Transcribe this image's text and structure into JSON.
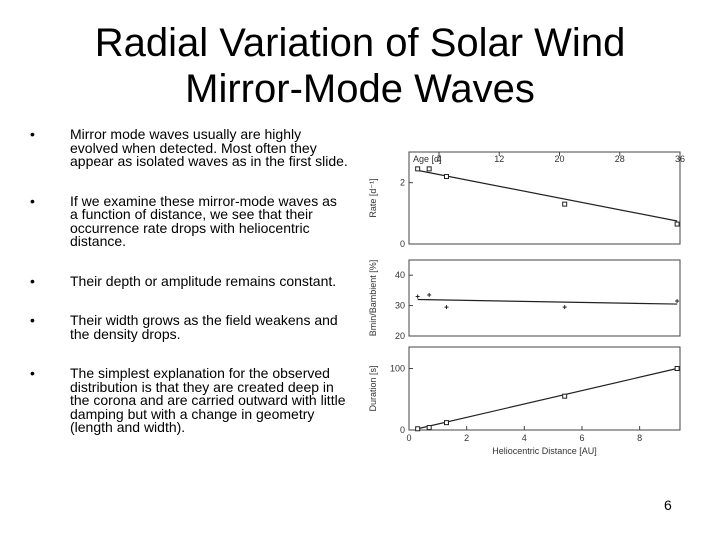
{
  "slide": {
    "title_lines": [
      "Radial Variation of Solar Wind",
      "Mirror-Mode Waves"
    ],
    "bullets": [
      "Mirror mode waves usually are highly evolved when detected. Most often they appear as isolated waves as in the first slide.",
      "If we examine these mirror-mode waves as a function of distance, we see that their occurrence rate drops with heliocentric distance.",
      "Their depth or amplitude remains constant.",
      "Their width grows as the field weakens and the density drops.",
      "The simplest explanation for the observed distribution is that they are created deep in the corona and are carried outward with little damping but with a change in geometry (length and width)."
    ],
    "bullet_symbol": "•",
    "page_number": "6"
  },
  "chart_data": [
    {
      "type": "scatter",
      "ylabel": "Rate [d⁻¹]",
      "top_axis_label": "Age [d]",
      "top_axis_ticks": [
        "4",
        "12",
        "20",
        "28",
        "36"
      ],
      "xlim": [
        0,
        9.4
      ],
      "ylim": [
        0,
        3
      ],
      "yticks": [
        "0",
        "2"
      ],
      "x": [
        0.3,
        0.7,
        1.3,
        5.4,
        9.3
      ],
      "y": [
        2.45,
        2.45,
        2.2,
        1.3,
        0.65
      ],
      "fit_line": [
        [
          0.3,
          2.4
        ],
        [
          9.3,
          0.75
        ]
      ]
    },
    {
      "type": "scatter",
      "ylabel": "Bmin/Bambient [%]",
      "xlim": [
        0,
        9.4
      ],
      "ylim": [
        20,
        45
      ],
      "yticks": [
        "20",
        "30",
        "40"
      ],
      "x": [
        0.3,
        0.7,
        1.3,
        5.4,
        9.3
      ],
      "y": [
        33,
        33.5,
        29.5,
        29.5,
        31.5
      ],
      "fit_line": [
        [
          0.3,
          32
        ],
        [
          9.3,
          30.5
        ]
      ]
    },
    {
      "type": "scatter",
      "ylabel": "Duration [s]",
      "xlabel": "Heliocentric Distance [AU]",
      "xlim": [
        0,
        9.4
      ],
      "xticks": [
        "0",
        "2",
        "4",
        "6",
        "8"
      ],
      "ylim": [
        0,
        135
      ],
      "yticks": [
        "0",
        "100"
      ],
      "x": [
        0.3,
        0.7,
        1.3,
        5.4,
        9.3
      ],
      "y": [
        2,
        4,
        12,
        55,
        100
      ],
      "fit_line": [
        [
          0.3,
          2
        ],
        [
          9.3,
          100
        ]
      ]
    }
  ]
}
